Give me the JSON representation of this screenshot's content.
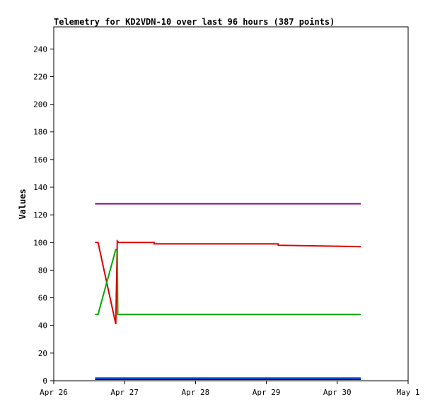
{
  "chart_data": {
    "type": "line",
    "title": "Telemetry for KD2VDN-10 over last 96 hours (387 points)",
    "ylabel": "Values",
    "xlabel": "",
    "xlim": [
      "2014-04-26",
      "2014-05-01"
    ],
    "ylim": [
      0,
      256
    ],
    "yticks": [
      0,
      20,
      40,
      60,
      80,
      100,
      120,
      140,
      160,
      180,
      200,
      220,
      240
    ],
    "xticks": [
      {
        "date": "2014-04-26",
        "label": "Apr 26"
      },
      {
        "date": "2014-04-27",
        "label": "Apr 27"
      },
      {
        "date": "2014-04-28",
        "label": "Apr 28"
      },
      {
        "date": "2014-04-29",
        "label": "Apr 29"
      },
      {
        "date": "2014-04-30",
        "label": "Apr 30"
      },
      {
        "date": "2014-05-01",
        "label": "May 1"
      }
    ],
    "grid": false,
    "legend": "none",
    "series": [
      {
        "color": "#800080",
        "x": [
          "2014-04-26T14:00",
          "2014-04-30T08:00"
        ],
        "y": [
          128,
          128
        ]
      },
      {
        "color": "#dd0000",
        "x": [
          "2014-04-26T14:00",
          "2014-04-26T15:00",
          "2014-04-26T21:00",
          "2014-04-26T21:30",
          "2014-04-26T22:00",
          "2014-04-27T10:00",
          "2014-04-27T10:01",
          "2014-04-29T04:00",
          "2014-04-29T04:01",
          "2014-04-30T08:00"
        ],
        "y": [
          100,
          100,
          41,
          101,
          100,
          100,
          99,
          99,
          98,
          97
        ]
      },
      {
        "color": "#00aa00",
        "x": [
          "2014-04-26T14:00",
          "2014-04-26T15:00",
          "2014-04-26T21:00",
          "2014-04-26T21:30",
          "2014-04-26T21:40",
          "2014-04-30T08:00"
        ],
        "y": [
          48,
          48,
          95,
          95,
          48,
          48
        ]
      },
      {
        "color": "#0066ff",
        "x": [
          "2014-04-26T14:00",
          "2014-04-30T08:00"
        ],
        "y": [
          2,
          2
        ]
      },
      {
        "color": "#000080",
        "x": [
          "2014-04-26T14:00",
          "2014-04-30T08:00"
        ],
        "y": [
          1,
          1
        ]
      }
    ]
  }
}
